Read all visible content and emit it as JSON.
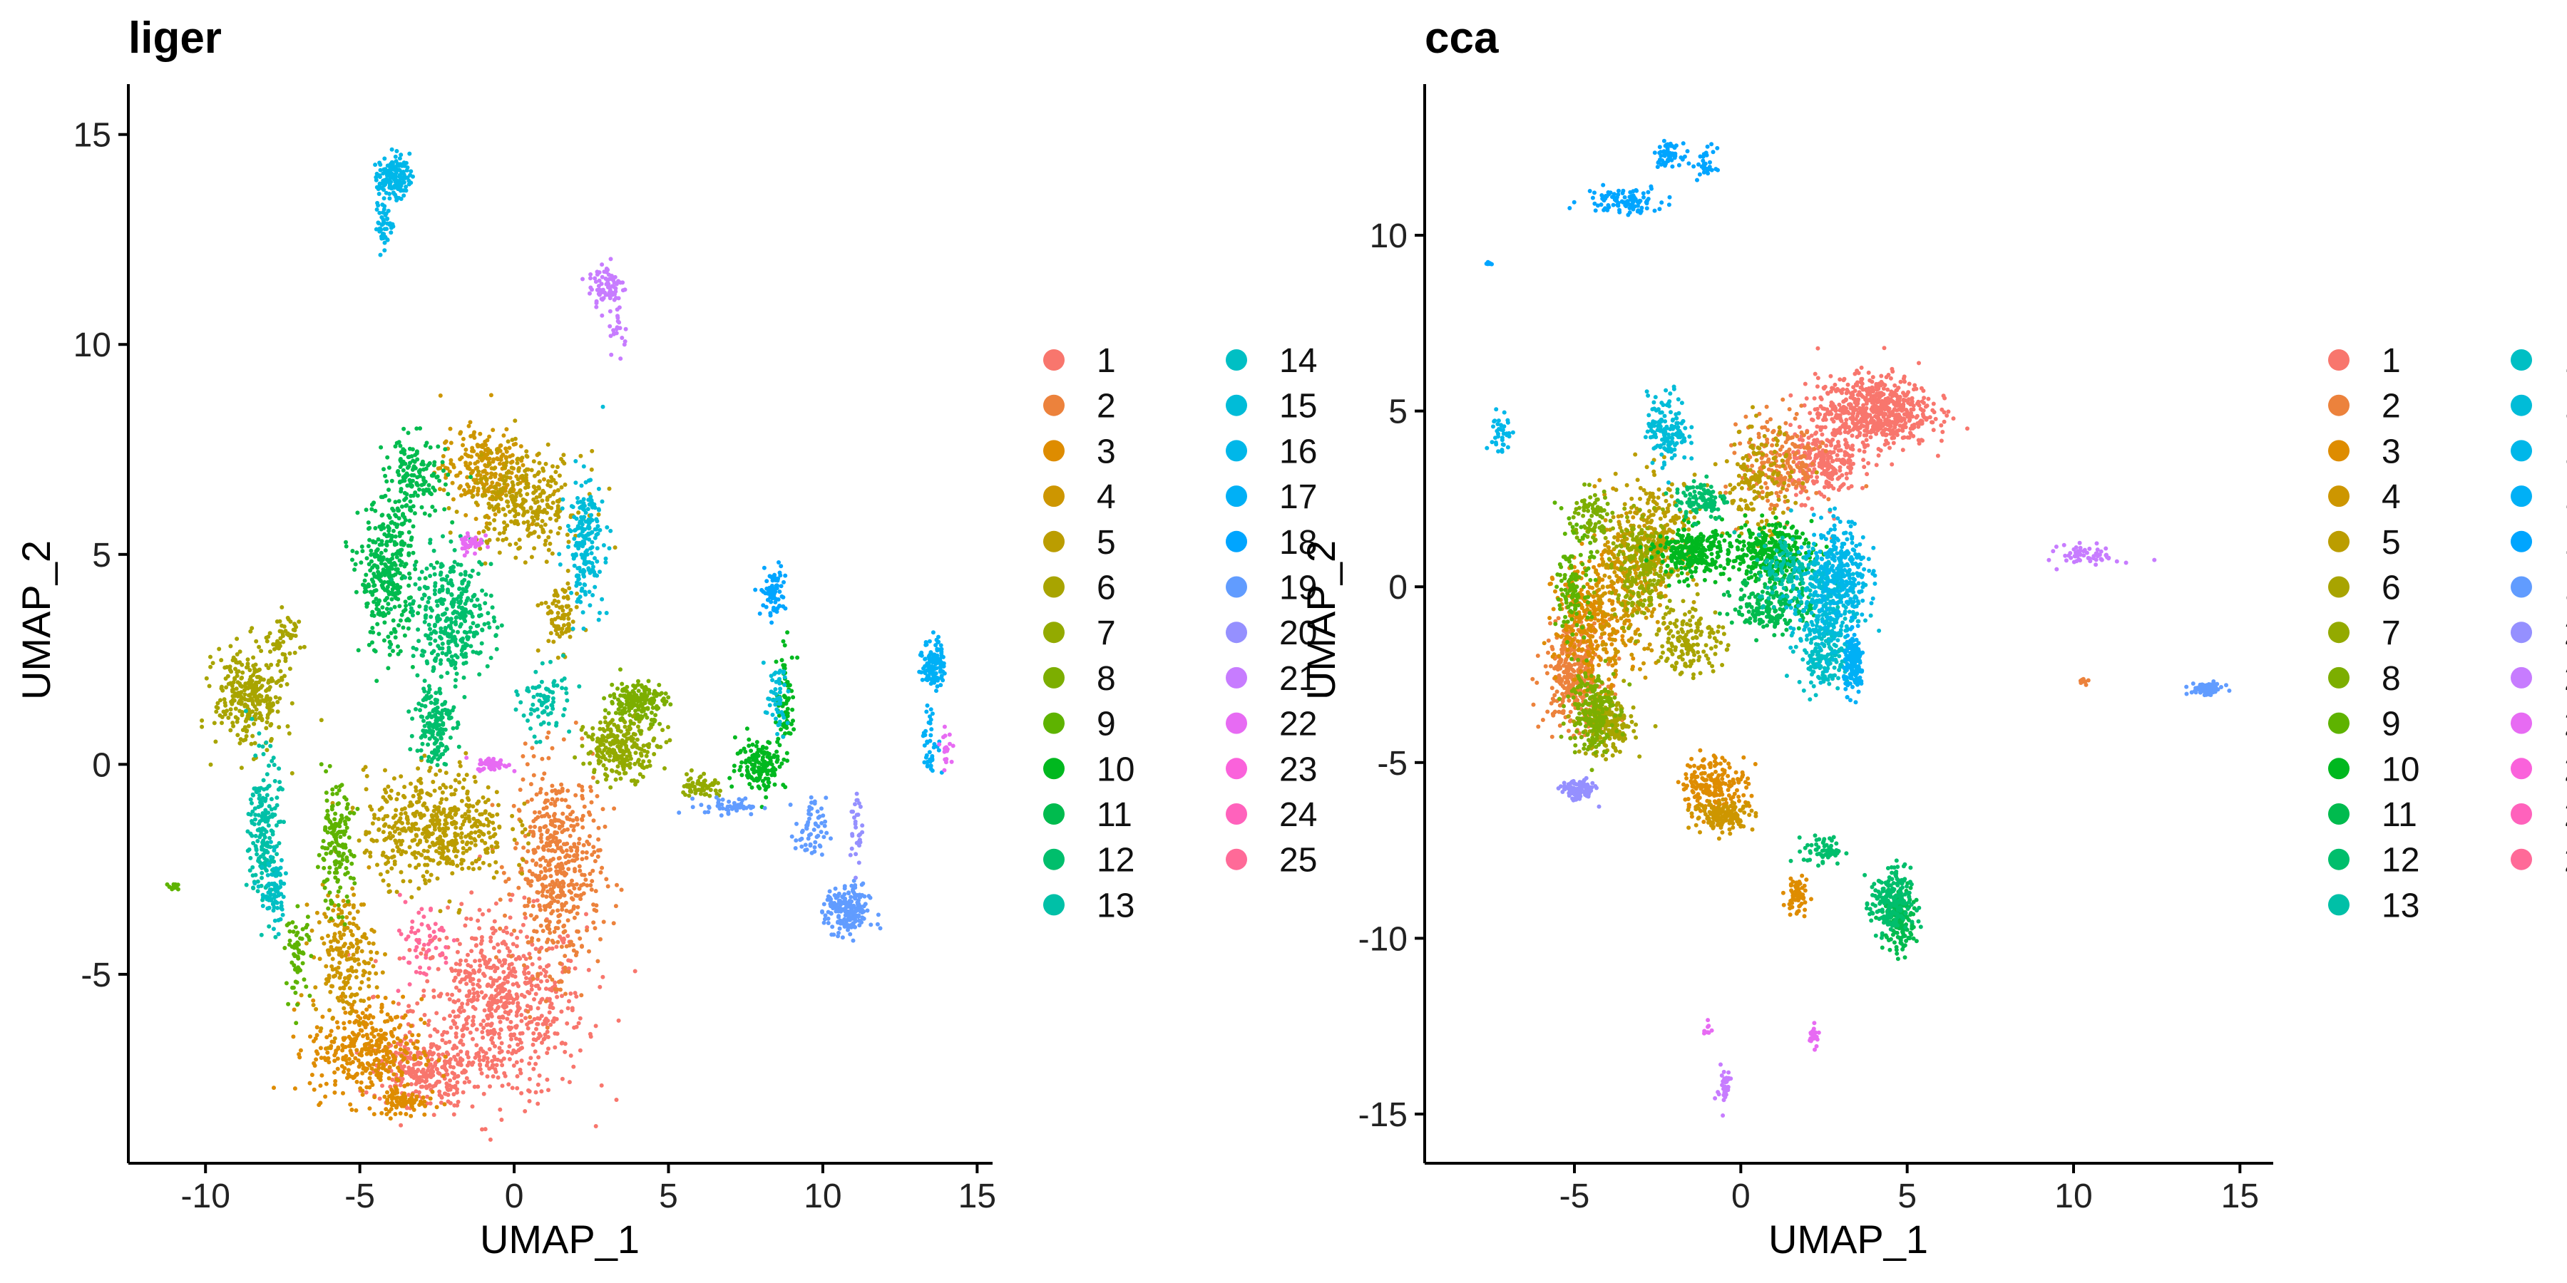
{
  "chart_data": [
    {
      "type": "scatter",
      "title": "liger",
      "xlabel": "UMAP_1",
      "ylabel": "UMAP_2",
      "xlim": [
        -12.5,
        15.5
      ],
      "ylim": [
        -9.5,
        16.2
      ],
      "xticks": [
        -10,
        -5,
        0,
        5,
        10,
        15
      ],
      "yticks": [
        -5,
        0,
        5,
        10,
        15
      ],
      "xtick_labels": [
        "-10",
        "-5",
        "0",
        "5",
        "10",
        "15"
      ],
      "ytick_labels": [
        "-5",
        "0",
        "5",
        "10",
        "15"
      ],
      "legend_placement": "right",
      "clusters": [
        {
          "id": "1",
          "blobs": [
            [
              -0.5,
              -5.8,
              2.8,
              2.2,
              700
            ],
            [
              -3.0,
              -7.3,
              1.6,
              0.8,
              250
            ]
          ]
        },
        {
          "id": "2",
          "blobs": [
            [
              1.4,
              -2.5,
              1.4,
              2.4,
              500
            ]
          ]
        },
        {
          "id": "3",
          "blobs": [
            [
              -4.8,
              -6.8,
              1.8,
              1.2,
              350
            ],
            [
              -3.6,
              -8.0,
              0.8,
              0.4,
              80
            ]
          ]
        },
        {
          "id": "4",
          "blobs": [
            [
              -5.5,
              -4.5,
              1.0,
              1.5,
              200
            ],
            [
              -1.0,
              7.0,
              1.4,
              1.0,
              250
            ]
          ]
        },
        {
          "id": "5",
          "blobs": [
            [
              -2.5,
              -1.5,
              2.3,
              1.3,
              500
            ],
            [
              0.4,
              6.2,
              1.8,
              1.2,
              300
            ],
            [
              1.5,
              3.5,
              0.6,
              0.8,
              80
            ]
          ]
        },
        {
          "id": "6",
          "blobs": [
            [
              -8.6,
              1.6,
              1.1,
              1.2,
              300
            ],
            [
              -7.4,
              3.0,
              0.5,
              0.6,
              50
            ]
          ]
        },
        {
          "id": "7",
          "blobs": [
            [
              3.5,
              0.4,
              1.2,
              0.7,
              250
            ],
            [
              6.0,
              -0.5,
              0.6,
              0.3,
              60
            ]
          ]
        },
        {
          "id": "8",
          "blobs": [
            [
              4.0,
              1.5,
              0.9,
              0.5,
              180
            ]
          ]
        },
        {
          "id": "9",
          "blobs": [
            [
              -5.8,
              -2.0,
              0.6,
              1.4,
              160
            ],
            [
              -7.0,
              -4.5,
              0.4,
              1.0,
              60
            ],
            [
              -11.0,
              -2.9,
              0.2,
              0.1,
              12
            ]
          ]
        },
        {
          "id": "10",
          "blobs": [
            [
              8.0,
              0.0,
              0.8,
              0.6,
              150
            ],
            [
              8.8,
              1.5,
              0.3,
              1.2,
              80
            ]
          ]
        },
        {
          "id": "11",
          "blobs": [
            [
              -4.1,
              4.5,
              0.9,
              1.8,
              350
            ],
            [
              -3.2,
              6.8,
              1.0,
              1.0,
              150
            ]
          ]
        },
        {
          "id": "12",
          "blobs": [
            [
              -2.0,
              3.5,
              1.3,
              1.5,
              350
            ],
            [
              -2.6,
              1.0,
              0.6,
              1.0,
              150
            ]
          ]
        },
        {
          "id": "13",
          "blobs": [
            [
              -8.1,
              -1.6,
              0.5,
              1.8,
              200
            ],
            [
              1.0,
              1.5,
              0.8,
              0.8,
              80
            ]
          ]
        },
        {
          "id": "14",
          "blobs": [
            [
              -7.8,
              -3.0,
              0.4,
              0.9,
              80
            ]
          ]
        },
        {
          "id": "15",
          "blobs": [
            [
              2.3,
              5.3,
              0.6,
              1.5,
              200
            ],
            [
              8.5,
              1.5,
              0.4,
              0.8,
              50
            ]
          ]
        },
        {
          "id": "16",
          "blobs": [
            [
              -3.9,
              14.0,
              0.5,
              0.5,
              150
            ],
            [
              -4.2,
              12.9,
              0.3,
              0.6,
              50
            ]
          ]
        },
        {
          "id": "17",
          "blobs": [
            [
              13.6,
              2.4,
              0.35,
              0.6,
              120
            ],
            [
              13.5,
              0.5,
              0.3,
              0.8,
              40
            ]
          ]
        },
        {
          "id": "18",
          "blobs": [
            [
              8.4,
              4.1,
              0.4,
              0.6,
              80
            ]
          ]
        },
        {
          "id": "19",
          "blobs": [
            [
              10.8,
              -3.5,
              0.7,
              0.6,
              200
            ],
            [
              9.6,
              -1.6,
              0.5,
              0.8,
              60
            ],
            [
              7.0,
              -1.0,
              1.0,
              0.2,
              50
            ]
          ]
        },
        {
          "id": "20",
          "blobs": [
            [
              11.1,
              -1.5,
              0.2,
              1.0,
              30
            ]
          ]
        },
        {
          "id": "21",
          "blobs": [
            [
              3.0,
              11.4,
              0.6,
              0.6,
              80
            ],
            [
              3.4,
              10.3,
              0.3,
              0.5,
              20
            ]
          ]
        },
        {
          "id": "22",
          "blobs": [
            [
              -0.7,
              0.0,
              0.5,
              0.15,
              60
            ],
            [
              -1.4,
              5.3,
              0.4,
              0.3,
              40
            ],
            [
              14.0,
              0.4,
              0.2,
              0.4,
              20
            ]
          ]
        },
        {
          "id": "23",
          "blobs": []
        },
        {
          "id": "24",
          "blobs": []
        },
        {
          "id": "25",
          "blobs": [
            [
              -3.0,
              -4.2,
              1.0,
              1.0,
              60
            ]
          ]
        }
      ]
    },
    {
      "type": "scatter",
      "title": "cca",
      "xlabel": "UMAP_1",
      "ylabel": "UMAP_2",
      "xlim": [
        -9.5,
        16.0
      ],
      "ylim": [
        -16.4,
        14.3
      ],
      "xticks": [
        -5,
        0,
        5,
        10,
        15
      ],
      "yticks": [
        -15,
        -10,
        -5,
        0,
        5,
        10
      ],
      "xtick_labels": [
        "-5",
        "0",
        "5",
        "10",
        "15"
      ],
      "ytick_labels": [
        "-15",
        "-10",
        "-5",
        "0",
        "5",
        "10"
      ],
      "legend_placement": "right",
      "clusters": [
        {
          "id": "1",
          "blobs": [
            [
              4.0,
              5.0,
              1.7,
              1.0,
              650
            ],
            [
              2.5,
              3.5,
              1.0,
              1.0,
              250
            ]
          ]
        },
        {
          "id": "2",
          "blobs": [
            [
              -5.0,
              -2.5,
              0.9,
              1.5,
              350
            ],
            [
              1.2,
              3.5,
              1.2,
              1.4,
              200
            ],
            [
              10.3,
              -2.7,
              0.15,
              0.1,
              12
            ]
          ]
        },
        {
          "id": "3",
          "blobs": [
            [
              -4.5,
              -1.0,
              1.1,
              1.8,
              300
            ],
            [
              -0.8,
              -5.6,
              1.0,
              0.8,
              200
            ],
            [
              1.7,
              -8.8,
              0.35,
              0.6,
              60
            ]
          ]
        },
        {
          "id": "4",
          "blobs": [
            [
              -3.5,
              0.0,
              1.2,
              2.0,
              250
            ],
            [
              -0.5,
              -6.5,
              0.9,
              0.4,
              150
            ]
          ]
        },
        {
          "id": "5",
          "blobs": [
            [
              -2.5,
              1.5,
              1.2,
              1.6,
              250
            ],
            [
              0.5,
              3.0,
              1.0,
              1.5,
              150
            ]
          ]
        },
        {
          "id": "6",
          "blobs": [
            [
              -4.0,
              -4.0,
              0.8,
              0.8,
              200
            ],
            [
              -1.5,
              -1.5,
              1.0,
              1.0,
              150
            ]
          ]
        },
        {
          "id": "7",
          "blobs": [
            [
              -3.0,
              0.5,
              0.9,
              1.4,
              200
            ]
          ]
        },
        {
          "id": "8",
          "blobs": [
            [
              -4.5,
              -3.5,
              0.7,
              1.2,
              200
            ],
            [
              -4.5,
              2.0,
              0.6,
              0.8,
              80
            ]
          ]
        },
        {
          "id": "9",
          "blobs": [
            [
              -5.0,
              0.0,
              0.5,
              1.5,
              120
            ]
          ]
        },
        {
          "id": "10",
          "blobs": [
            [
              -1.5,
              1.0,
              1.0,
              0.7,
              250
            ],
            [
              0.8,
              1.0,
              1.3,
              0.8,
              300
            ]
          ]
        },
        {
          "id": "11",
          "blobs": [
            [
              1.0,
              -0.5,
              1.2,
              0.8,
              200
            ],
            [
              4.8,
              -9.5,
              0.5,
              0.9,
              150
            ]
          ]
        },
        {
          "id": "12",
          "blobs": [
            [
              4.5,
              -9.0,
              0.6,
              1.0,
              200
            ],
            [
              2.5,
              -7.5,
              0.6,
              0.4,
              60
            ],
            [
              -1.2,
              2.5,
              0.8,
              0.6,
              100
            ]
          ]
        },
        {
          "id": "13",
          "blobs": [
            [
              1.5,
              0.5,
              1.0,
              1.0,
              120
            ]
          ]
        },
        {
          "id": "14",
          "blobs": [
            [
              2.5,
              -2.0,
              0.8,
              0.8,
              150
            ]
          ]
        },
        {
          "id": "15",
          "blobs": [
            [
              2.5,
              -0.5,
              1.0,
              1.5,
              300
            ],
            [
              -2.2,
              4.5,
              0.6,
              1.0,
              150
            ]
          ]
        },
        {
          "id": "16",
          "blobs": [
            [
              3.0,
              0.5,
              0.8,
              1.4,
              250
            ],
            [
              -7.2,
              4.3,
              0.3,
              0.8,
              40
            ]
          ]
        },
        {
          "id": "17",
          "blobs": [
            [
              3.4,
              -2.2,
              0.3,
              0.8,
              150
            ]
          ]
        },
        {
          "id": "18",
          "blobs": [
            [
              -3.5,
              11.0,
              1.2,
              0.4,
              100
            ],
            [
              -2.2,
              12.3,
              0.4,
              0.3,
              60
            ],
            [
              -1.0,
              12.0,
              0.3,
              0.5,
              30
            ],
            [
              -7.6,
              9.2,
              0.1,
              0.1,
              8
            ]
          ]
        },
        {
          "id": "19",
          "blobs": [
            [
              14.0,
              -2.9,
              0.5,
              0.15,
              80
            ]
          ]
        },
        {
          "id": "20",
          "blobs": [
            [
              -4.9,
              -5.8,
              0.5,
              0.3,
              100
            ]
          ]
        },
        {
          "id": "21",
          "blobs": [
            [
              10.5,
              0.9,
              0.9,
              0.3,
              60
            ],
            [
              -0.5,
              -14.2,
              0.2,
              0.6,
              40
            ]
          ]
        },
        {
          "id": "22",
          "blobs": [
            [
              2.2,
              -12.8,
              0.15,
              0.3,
              25
            ],
            [
              -1.0,
              -12.6,
              0.1,
              0.2,
              10
            ]
          ]
        },
        {
          "id": "23",
          "blobs": []
        },
        {
          "id": "24",
          "blobs": []
        },
        {
          "id": "25",
          "blobs": []
        }
      ]
    }
  ],
  "legend": {
    "items": [
      "1",
      "2",
      "3",
      "4",
      "5",
      "6",
      "7",
      "8",
      "9",
      "10",
      "11",
      "12",
      "13",
      "14",
      "15",
      "16",
      "17",
      "18",
      "19",
      "20",
      "21",
      "22",
      "23",
      "24",
      "25"
    ],
    "colors": [
      "#F8766D",
      "#EC823C",
      "#DE8C00",
      "#CD9600",
      "#BB9D00",
      "#A8A400",
      "#93AA00",
      "#7CAE00",
      "#5EB300",
      "#00B81F",
      "#00BB4E",
      "#00BE6C",
      "#00C0A7",
      "#00BFC4",
      "#00BCD8",
      "#00B7E9",
      "#00B0F6",
      "#00A5FF",
      "#619CFF",
      "#9590FF",
      "#C77CFF",
      "#E76BF3",
      "#FA62DB",
      "#FF62BC",
      "#FF6A98"
    ]
  }
}
